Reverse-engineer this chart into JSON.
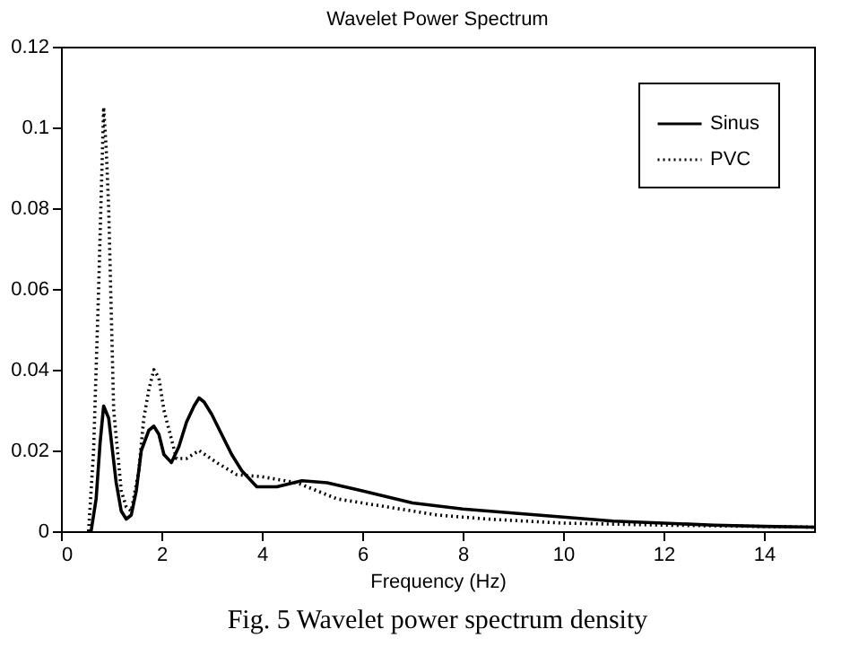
{
  "chart_data": {
    "type": "line",
    "title": "Wavelet Power Spectrum",
    "xlabel": "Frequency (Hz)",
    "annotations": [
      "Fig. 5 Wavelet power spectrum density"
    ],
    "xlim": [
      0,
      15
    ],
    "xticks": [
      0,
      2,
      4,
      6,
      8,
      10,
      12,
      14
    ],
    "ylim": [
      0,
      0.12
    ],
    "yticks": [
      0,
      0.02,
      0.04,
      0.06,
      0.08,
      0.1,
      0.12
    ],
    "grid": false,
    "legend": "top right",
    "marker": "none",
    "series": [
      {
        "name": "Sinus",
        "color": "#000000",
        "line_style": "solid",
        "x": [
          0.6,
          0.7,
          0.78,
          0.85,
          0.95,
          1.1,
          1.2,
          1.3,
          1.4,
          1.5,
          1.6,
          1.75,
          1.85,
          1.95,
          2.05,
          2.2,
          2.35,
          2.5,
          2.65,
          2.75,
          2.85,
          3.0,
          3.2,
          3.4,
          3.6,
          3.9,
          4.3,
          4.8,
          5.3,
          6.0,
          7.0,
          8.0,
          9.0,
          10.0,
          11.0,
          12.0,
          13.0,
          14.0,
          15.0
        ],
        "values": [
          0,
          0.008,
          0.022,
          0.031,
          0.028,
          0.012,
          0.005,
          0.003,
          0.004,
          0.01,
          0.02,
          0.025,
          0.026,
          0.024,
          0.019,
          0.017,
          0.021,
          0.027,
          0.031,
          0.033,
          0.032,
          0.029,
          0.024,
          0.019,
          0.015,
          0.011,
          0.011,
          0.0125,
          0.012,
          0.01,
          0.007,
          0.0055,
          0.0045,
          0.0035,
          0.0025,
          0.002,
          0.0015,
          0.0012,
          0.001
        ]
      },
      {
        "name": "PVC",
        "color": "#000000",
        "line_style": "dotted",
        "x": [
          0.55,
          0.65,
          0.75,
          0.85,
          0.9,
          0.95,
          1.05,
          1.2,
          1.3,
          1.4,
          1.55,
          1.65,
          1.75,
          1.85,
          1.95,
          2.05,
          2.3,
          2.5,
          2.75,
          3.1,
          3.5,
          4.0,
          4.7,
          5.5,
          6.5,
          7.5,
          8.5,
          10.0,
          12.0,
          15.0
        ],
        "values": [
          0,
          0.02,
          0.06,
          0.105,
          0.095,
          0.08,
          0.03,
          0.01,
          0.006,
          0.005,
          0.015,
          0.028,
          0.035,
          0.04,
          0.038,
          0.03,
          0.018,
          0.018,
          0.02,
          0.017,
          0.014,
          0.0135,
          0.012,
          0.008,
          0.006,
          0.004,
          0.003,
          0.002,
          0.0015,
          0.001
        ]
      }
    ]
  }
}
